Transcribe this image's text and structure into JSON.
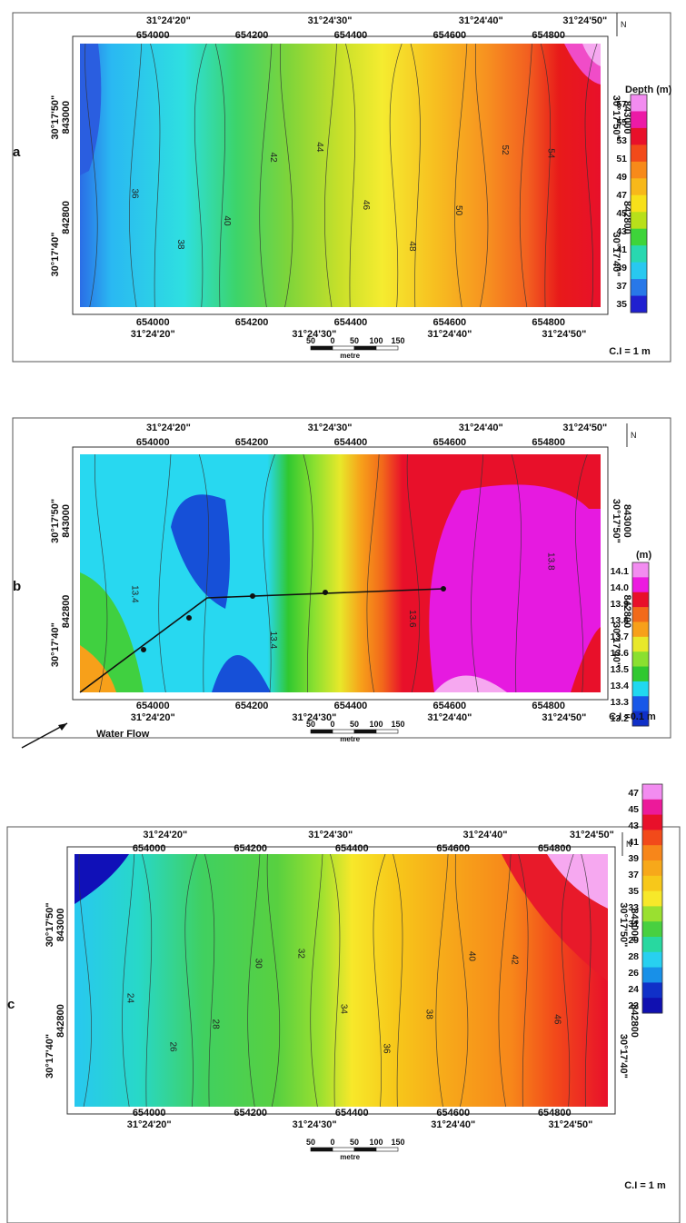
{
  "panels": [
    {
      "letter": "a",
      "top_coords": [
        "31°24'20\"",
        "31°24'30\"",
        "31°24'40\"",
        "31°24'50\""
      ],
      "top_eastings": [
        "654000",
        "654200",
        "654400",
        "654600",
        "654800"
      ],
      "bottom_eastings": [
        "654000",
        "654200",
        "654400",
        "654600",
        "654800"
      ],
      "bottom_coords": [
        "31°24'20\"",
        "31°24'30\"",
        "31°24'40\"",
        "31°24'50\""
      ],
      "left_lat": [
        "30°17'50\"",
        "30°17'40\""
      ],
      "left_northing": [
        "843000",
        "842800"
      ],
      "right_lat": [
        "30°17'50\"",
        "30°17'40\""
      ],
      "right_northing": [
        "843000",
        "842800"
      ],
      "legend_title": "Depth (m)",
      "legend_values": [
        "57",
        "55",
        "53",
        "51",
        "49",
        "47",
        "45",
        "43",
        "41",
        "39",
        "37",
        "35"
      ],
      "legend_colors": [
        "#f28cf0",
        "#ec1aa6",
        "#e8102a",
        "#f24a1a",
        "#f78a1a",
        "#f7b81a",
        "#f7e01a",
        "#b8e01a",
        "#3ed43a",
        "#28d8b0",
        "#28c8f0",
        "#2878e8",
        "#2020d0"
      ],
      "contour_labels": [
        "36",
        "38",
        "40",
        "42",
        "44",
        "46",
        "48",
        "50",
        "52",
        "54"
      ],
      "contour_interval": "C.I = 1 m",
      "north_label": "N",
      "scale_values": [
        "50",
        "0",
        "50",
        "100",
        "150"
      ],
      "scale_unit": "metre"
    },
    {
      "letter": "b",
      "top_coords": [
        "31°24'20\"",
        "31°24'30\"",
        "31°24'40\"",
        "31°24'50\""
      ],
      "top_eastings": [
        "654000",
        "654200",
        "654400",
        "654600",
        "654800"
      ],
      "bottom_eastings": [
        "654000",
        "654200",
        "654400",
        "654600",
        "654800"
      ],
      "bottom_coords": [
        "31°24'20\"",
        "31°24'30\"",
        "31°24'40\"",
        "31°24'50\""
      ],
      "left_lat": [
        "30°17'50\"",
        "30°17'40\""
      ],
      "left_northing": [
        "843000",
        "842800"
      ],
      "right_lat": [
        "30°17'50\"",
        "30°17'40\""
      ],
      "right_northing": [
        "843000",
        "842800"
      ],
      "legend_title": "(m)",
      "legend_values": [
        "14.1",
        "14.0",
        "13.9",
        "13.8",
        "13.7",
        "13.6",
        "13.5",
        "13.4",
        "13.3",
        "13.2"
      ],
      "legend_colors": [
        "#f28cf0",
        "#ec1ae0",
        "#e8102a",
        "#f26a1a",
        "#f7a01a",
        "#e8e82a",
        "#8ae030",
        "#30c830",
        "#20d8f0",
        "#1858e8",
        "#1030c8"
      ],
      "contour_labels": [
        "13.4",
        "13.4",
        "13.6",
        "13.8"
      ],
      "contour_interval": "C.I =0.1 m",
      "north_label": "N",
      "scale_values": [
        "50",
        "0",
        "50",
        "100",
        "150"
      ],
      "scale_unit": "metre",
      "flow_label": "Water Flow"
    },
    {
      "letter": "c",
      "top_coords": [
        "31°24'20\"",
        "31°24'30\"",
        "31°24'40\"",
        "31°24'50\""
      ],
      "top_eastings": [
        "654000",
        "654200",
        "654400",
        "654600",
        "654800"
      ],
      "bottom_eastings": [
        "654000",
        "654200",
        "654400",
        "654600",
        "654800"
      ],
      "bottom_coords": [
        "31°24'20\"",
        "31°24'30\"",
        "31°24'40\"",
        "31°24'50\""
      ],
      "left_lat": [
        "30°17'50\"",
        "30°17'40\""
      ],
      "left_northing": [
        "843000",
        "842800"
      ],
      "right_lat": [
        "30°17'50\"",
        "30°17'40\""
      ],
      "right_northing": [
        "843000",
        "842800"
      ],
      "legend_title": "(m)",
      "legend_values": [
        "47",
        "45",
        "43",
        "41",
        "39",
        "37",
        "35",
        "33",
        "31",
        "29",
        "28",
        "26",
        "24",
        "22"
      ],
      "legend_colors": [
        "#f28cf0",
        "#ec1a9a",
        "#e8102a",
        "#f24a1a",
        "#f7861a",
        "#f7a81a",
        "#f7c81a",
        "#f7e82a",
        "#9ae030",
        "#48d040",
        "#28d8a0",
        "#28d0f0",
        "#1890e8",
        "#1030c8",
        "#1010b0"
      ],
      "contour_labels": [
        "24",
        "26",
        "28",
        "30",
        "32",
        "34",
        "36",
        "38",
        "40",
        "42",
        "46"
      ],
      "contour_interval": "C.I = 1 m",
      "north_label": "N",
      "scale_values": [
        "50",
        "0",
        "50",
        "100",
        "150"
      ],
      "scale_unit": "metre"
    }
  ]
}
